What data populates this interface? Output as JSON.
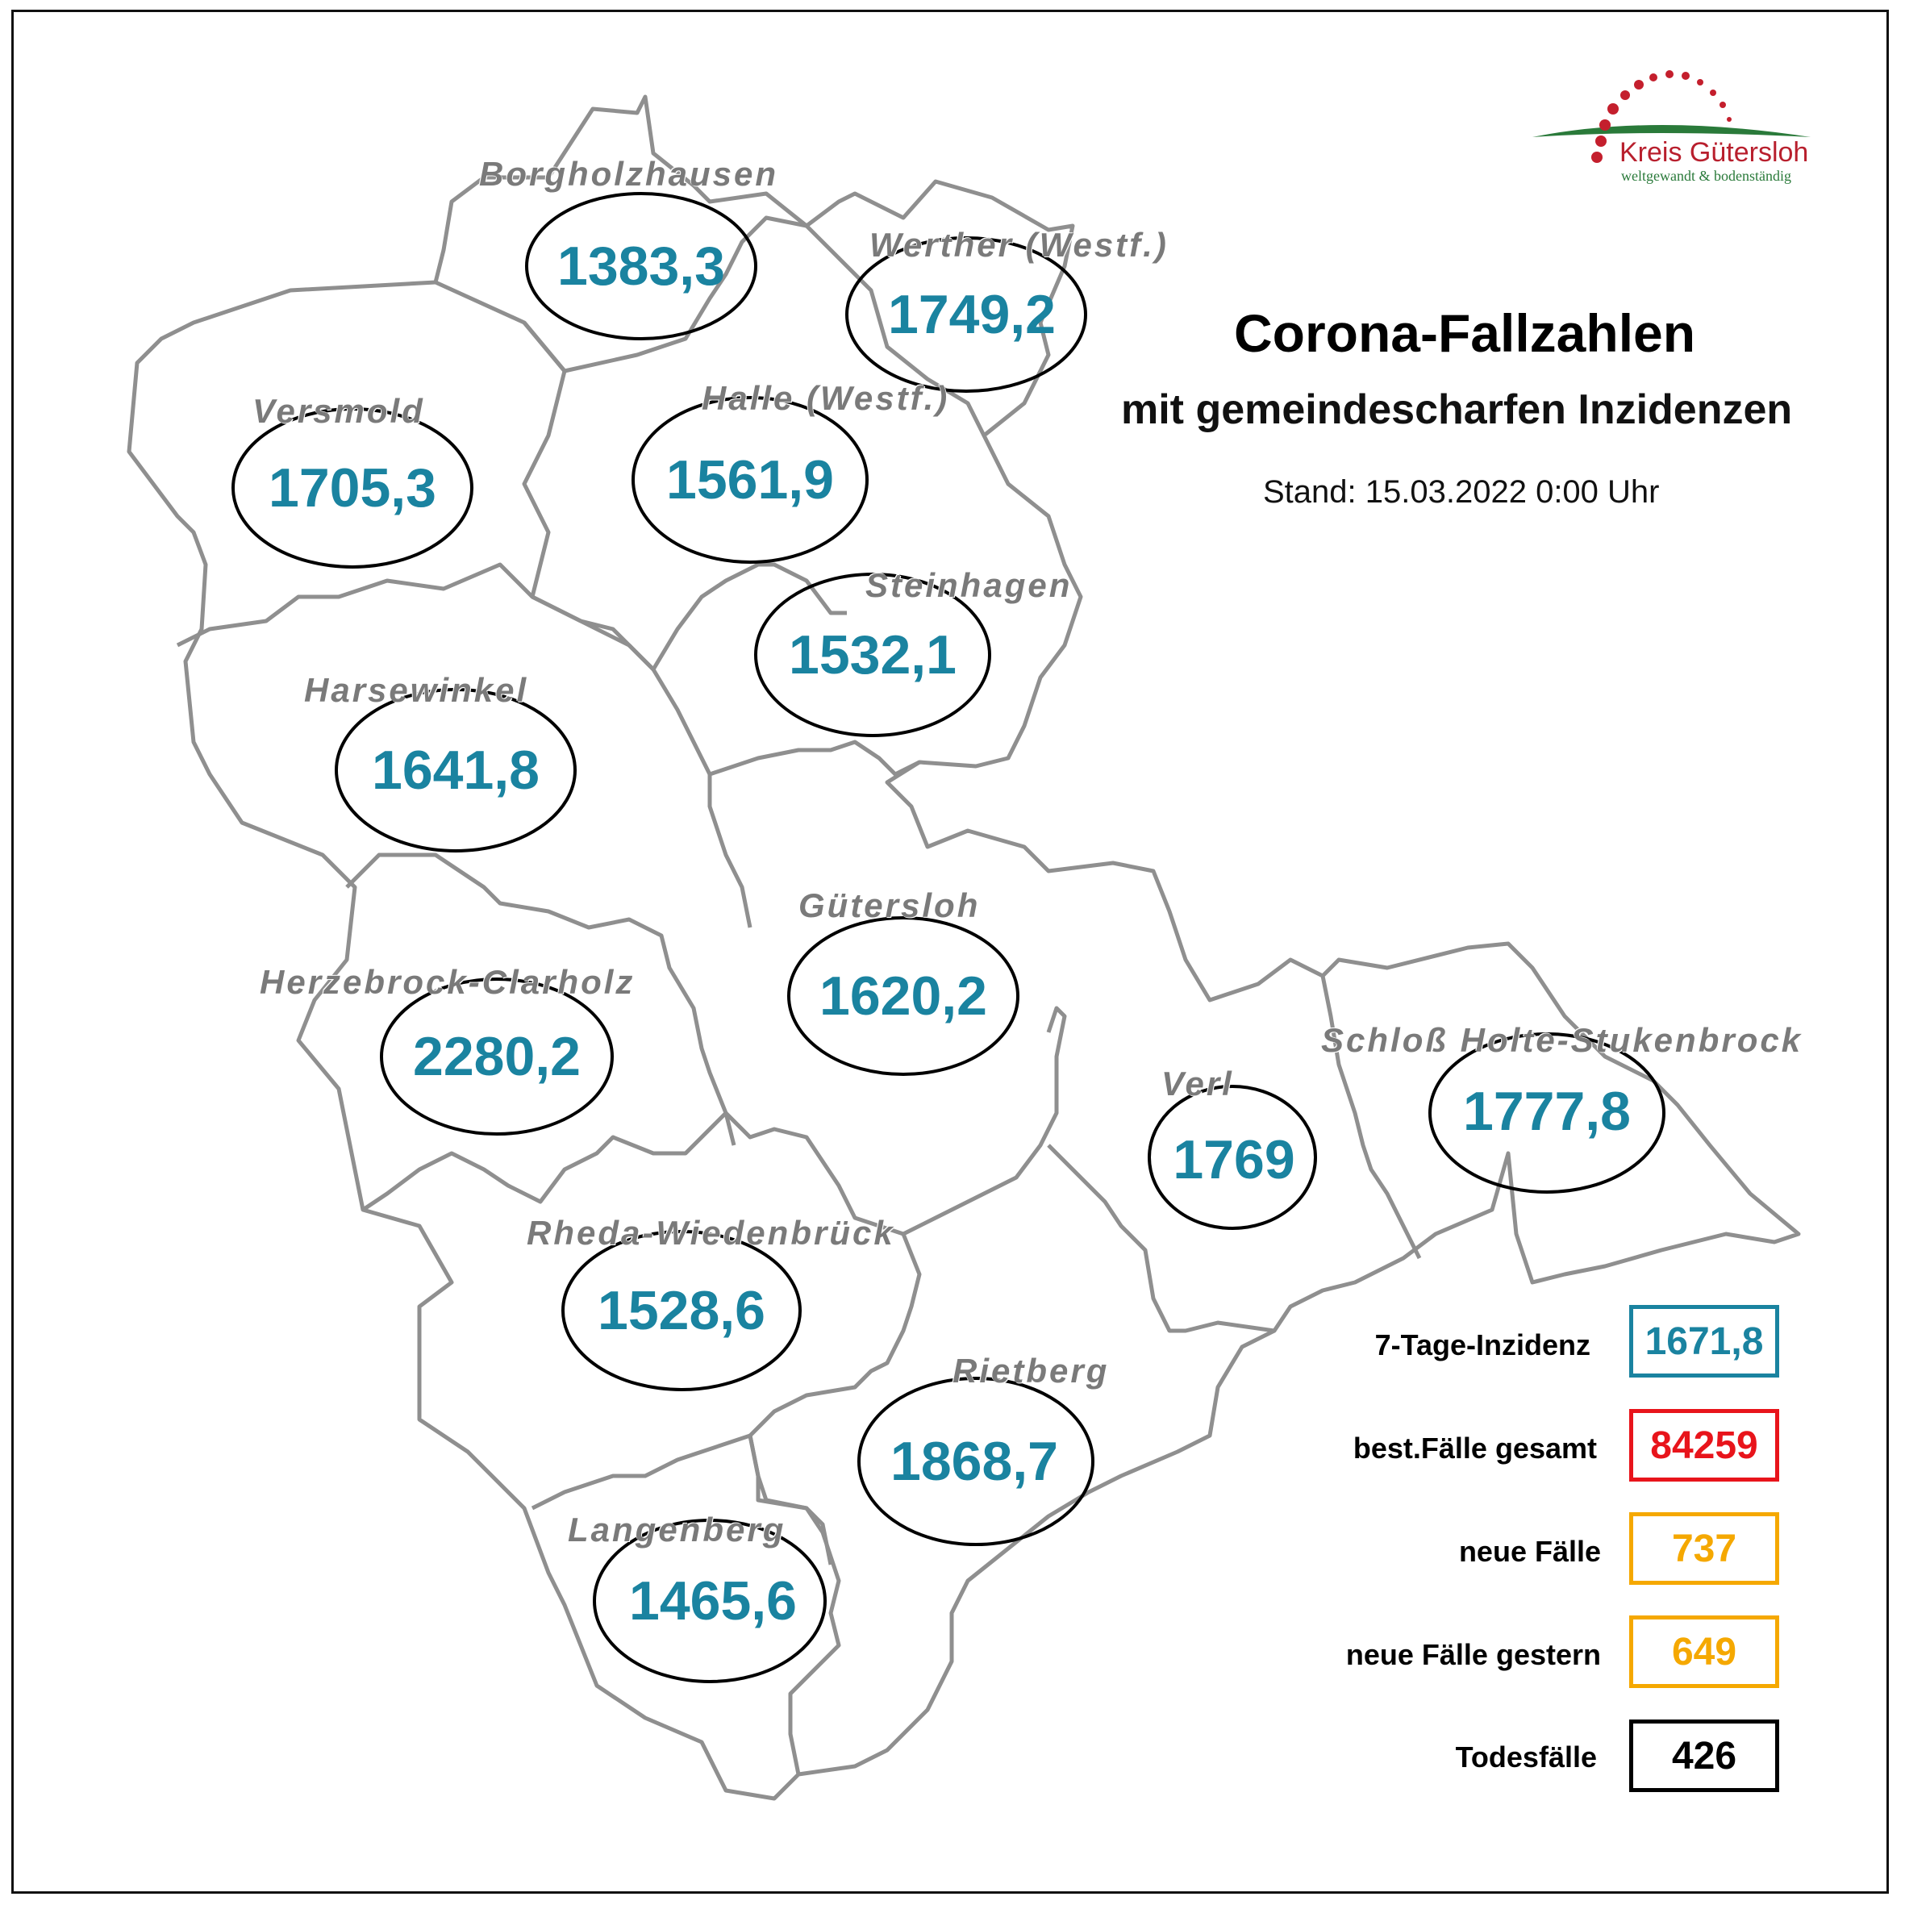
{
  "title": "Corona-Fallzahlen",
  "subtitle": "mit gemeindescharfen Inzidenzen",
  "stand": "Stand: 15.03.2022 0:00 Uhr",
  "logo": {
    "name": "Kreis Gütersloh",
    "slogan": "weltgewandt & bodenständig"
  },
  "colors": {
    "incidence": "#1a83a0",
    "total": "#e8141b",
    "new": "#f5a800",
    "deaths": "#000000",
    "border": "#9a9a9a"
  },
  "municipalities": [
    {
      "name": "Borgholzhausen",
      "value": "1383,3"
    },
    {
      "name": "Werther (Westf.)",
      "value": "1749,2"
    },
    {
      "name": "Versmold",
      "value": "1705,3"
    },
    {
      "name": "Halle (Westf.)",
      "value": "1561,9"
    },
    {
      "name": "Steinhagen",
      "value": "1532,1"
    },
    {
      "name": "Harsewinkel",
      "value": "1641,8"
    },
    {
      "name": "Gütersloh",
      "value": "1620,2"
    },
    {
      "name": "Herzebrock-Clarholz",
      "value": "2280,2"
    },
    {
      "name": "Schloß Holte-Stukenbrock",
      "value": "1777,8"
    },
    {
      "name": "Verl",
      "value": "1769"
    },
    {
      "name": "Rheda-Wiedenbrück",
      "value": "1528,6"
    },
    {
      "name": "Rietberg",
      "value": "1868,7"
    },
    {
      "name": "Langenberg",
      "value": "1465,6"
    }
  ],
  "legend": [
    {
      "label": "7-Tage-Inzidenz",
      "value": "1671,8"
    },
    {
      "label": "best.Fälle gesamt",
      "value": "84259"
    },
    {
      "label": "neue Fälle",
      "value": "737"
    },
    {
      "label": "neue Fälle gestern",
      "value": "649"
    },
    {
      "label": "Todesfälle",
      "value": "426"
    }
  ]
}
